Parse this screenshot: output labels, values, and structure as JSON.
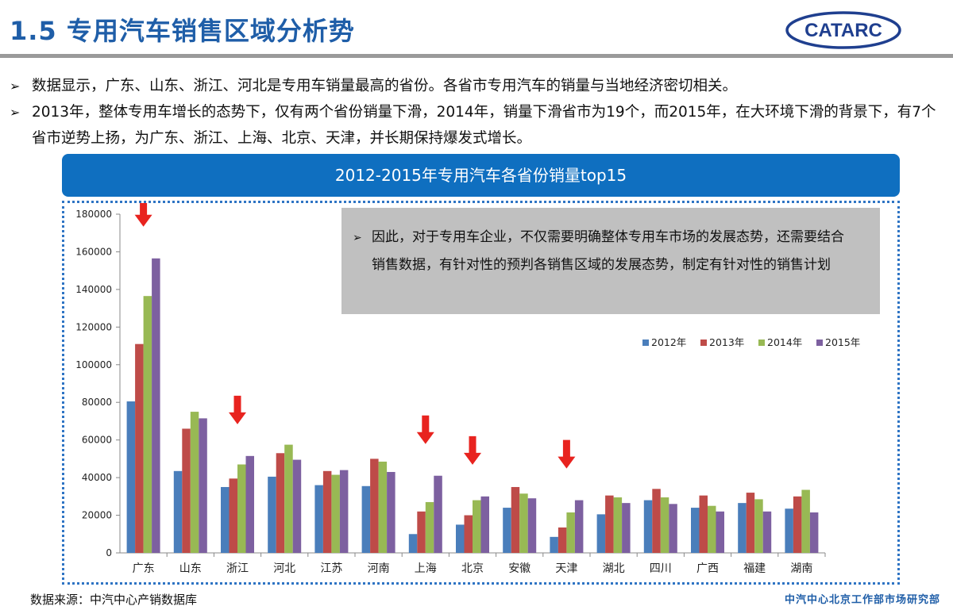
{
  "header": {
    "title": "1.5 专用汽车销售区域分析势",
    "logo_text": "CATARC"
  },
  "bullets": [
    "数据显示，广东、山东、浙江、河北是专用车销量最高的省份。各省市专用汽车的销量与当地经济密切相关。",
    "2013年，整体专用车增长的态势下，仅有两个省份销量下滑，2014年，销量下滑省市为19个，而2015年，在大环境下滑的背景下，有7个省市逆势上扬，为广东、浙江、上海、北京、天津，并长期保持爆发式增长。"
  ],
  "bullet_marker": "➢",
  "banner": {
    "title": "2012-2015年专用汽车各省份销量top15"
  },
  "callout": {
    "text": "因此，对于专用车企业，不仅需要明确整体专用车市场的发展态势，还需要结合销售数据，有针对性的预判各销售区域的发展态势，制定有针对性的销售计划"
  },
  "colors": {
    "title_blue": "#1f5ea8",
    "banner_blue": "#0f6fc0",
    "arrow_red": "#e8231f",
    "series": [
      "#4a7ebb",
      "#be4b48",
      "#98b954",
      "#7d60a0"
    ]
  },
  "chart_data": {
    "type": "bar",
    "categories": [
      "广东",
      "山东",
      "浙江",
      "河北",
      "江苏",
      "河南",
      "上海",
      "北京",
      "安徽",
      "天津",
      "湖北",
      "四川",
      "广西",
      "福建",
      "湖南"
    ],
    "series": [
      {
        "name": "2012年",
        "values": [
          80500,
          43500,
          35000,
          40500,
          36000,
          35500,
          10000,
          15000,
          24000,
          8500,
          20500,
          28000,
          24000,
          26500,
          23500
        ]
      },
      {
        "name": "2013年",
        "values": [
          111000,
          66000,
          39500,
          53000,
          43500,
          50000,
          22000,
          20000,
          35000,
          13500,
          30500,
          34000,
          30500,
          32000,
          30000
        ]
      },
      {
        "name": "2014年",
        "values": [
          136500,
          75000,
          47000,
          57500,
          41500,
          48500,
          27000,
          28000,
          31500,
          21500,
          29500,
          29500,
          25000,
          28500,
          33500
        ]
      },
      {
        "name": "2015年",
        "values": [
          156500,
          71500,
          51500,
          49500,
          44000,
          43000,
          41000,
          30000,
          29000,
          28000,
          26500,
          26000,
          22000,
          22000,
          21500
        ]
      }
    ],
    "ylim": [
      0,
      180000
    ],
    "yticks": [
      "0",
      "20000",
      "40000",
      "60000",
      "80000",
      "100000",
      "120000",
      "140000",
      "160000",
      "180000"
    ],
    "legend_position": "top-right",
    "grid": false,
    "highlighted_categories": [
      "广东",
      "浙江",
      "上海",
      "北京",
      "天津"
    ]
  },
  "footer": {
    "source": "数据来源：中汽中心产销数据库",
    "org": "中汽中心北京工作部市场研究部"
  }
}
